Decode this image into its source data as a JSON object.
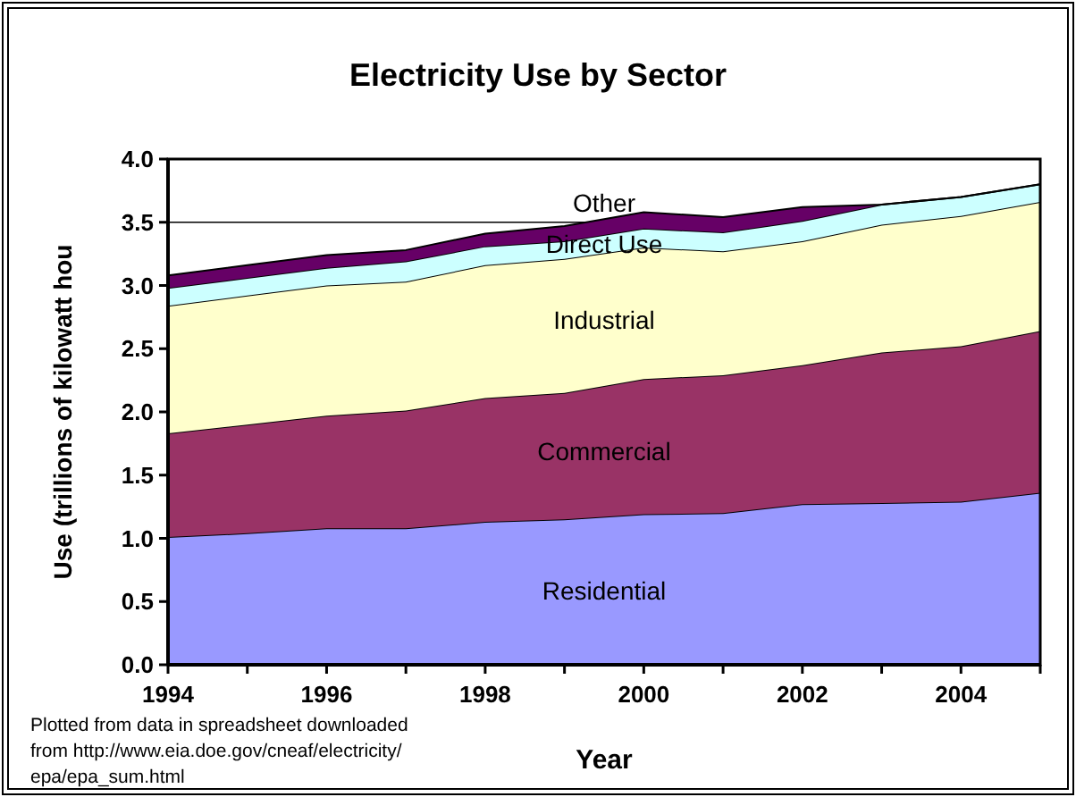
{
  "chart_data": {
    "type": "area",
    "stacked": true,
    "title": "Electricity Use by Sector",
    "xlabel": "Year",
    "ylabel": "Use (trillions of kilowatt hou",
    "x": [
      1994,
      1995,
      1996,
      1997,
      1998,
      1999,
      2000,
      2001,
      2002,
      2003,
      2004,
      2005
    ],
    "series": [
      {
        "name": "Residential",
        "color": "#9999ff",
        "values": [
          1.01,
          1.04,
          1.08,
          1.08,
          1.13,
          1.15,
          1.19,
          1.2,
          1.27,
          1.28,
          1.29,
          1.36
        ]
      },
      {
        "name": "Commercial",
        "color": "#993366",
        "values": [
          0.82,
          0.86,
          0.89,
          0.93,
          0.98,
          1.0,
          1.07,
          1.09,
          1.1,
          1.19,
          1.23,
          1.28
        ]
      },
      {
        "name": "Industrial",
        "color": "#ffffcc",
        "values": [
          1.01,
          1.02,
          1.03,
          1.02,
          1.05,
          1.06,
          1.04,
          0.98,
          0.98,
          1.01,
          1.03,
          1.02
        ]
      },
      {
        "name": "Direct Use",
        "color": "#ccffff",
        "values": [
          0.14,
          0.14,
          0.14,
          0.16,
          0.15,
          0.14,
          0.15,
          0.15,
          0.16,
          0.16,
          0.15,
          0.14
        ]
      },
      {
        "name": "Other",
        "color": "#660066",
        "values": [
          0.1,
          0.1,
          0.1,
          0.09,
          0.1,
          0.12,
          0.13,
          0.12,
          0.11,
          0,
          0,
          0
        ]
      }
    ],
    "xlim": [
      1994,
      2005
    ],
    "xticks": [
      1994,
      {
        "value": 1995,
        "label": null
      },
      1996,
      {
        "value": 1997,
        "label": null
      },
      1998,
      {
        "value": 1999,
        "label": null
      },
      2000,
      {
        "value": 2001,
        "label": null
      },
      2002,
      {
        "value": 2003,
        "label": null
      },
      2004,
      {
        "value": 2005,
        "label": null
      }
    ],
    "ylim": [
      0,
      4
    ],
    "yticks": [
      {
        "value": 0,
        "label": "0.0"
      },
      {
        "value": 0.5,
        "label": "0.5"
      },
      {
        "value": 1,
        "label": "1.0"
      },
      {
        "value": 1.5,
        "label": "1.5"
      },
      {
        "value": 2,
        "label": "2.0"
      },
      {
        "value": 2.5,
        "label": "2.5"
      },
      {
        "value": 3,
        "label": "3.0"
      },
      {
        "value": 3.5,
        "label": "3.5"
      },
      {
        "value": 4,
        "label": "4.0"
      }
    ],
    "grid": "y",
    "annotations": [
      "Plotted from data in spreadsheet downloaded from http://www.eia.doe.gov/cneaf/electricity/ epa/epa_sum.html"
    ]
  }
}
